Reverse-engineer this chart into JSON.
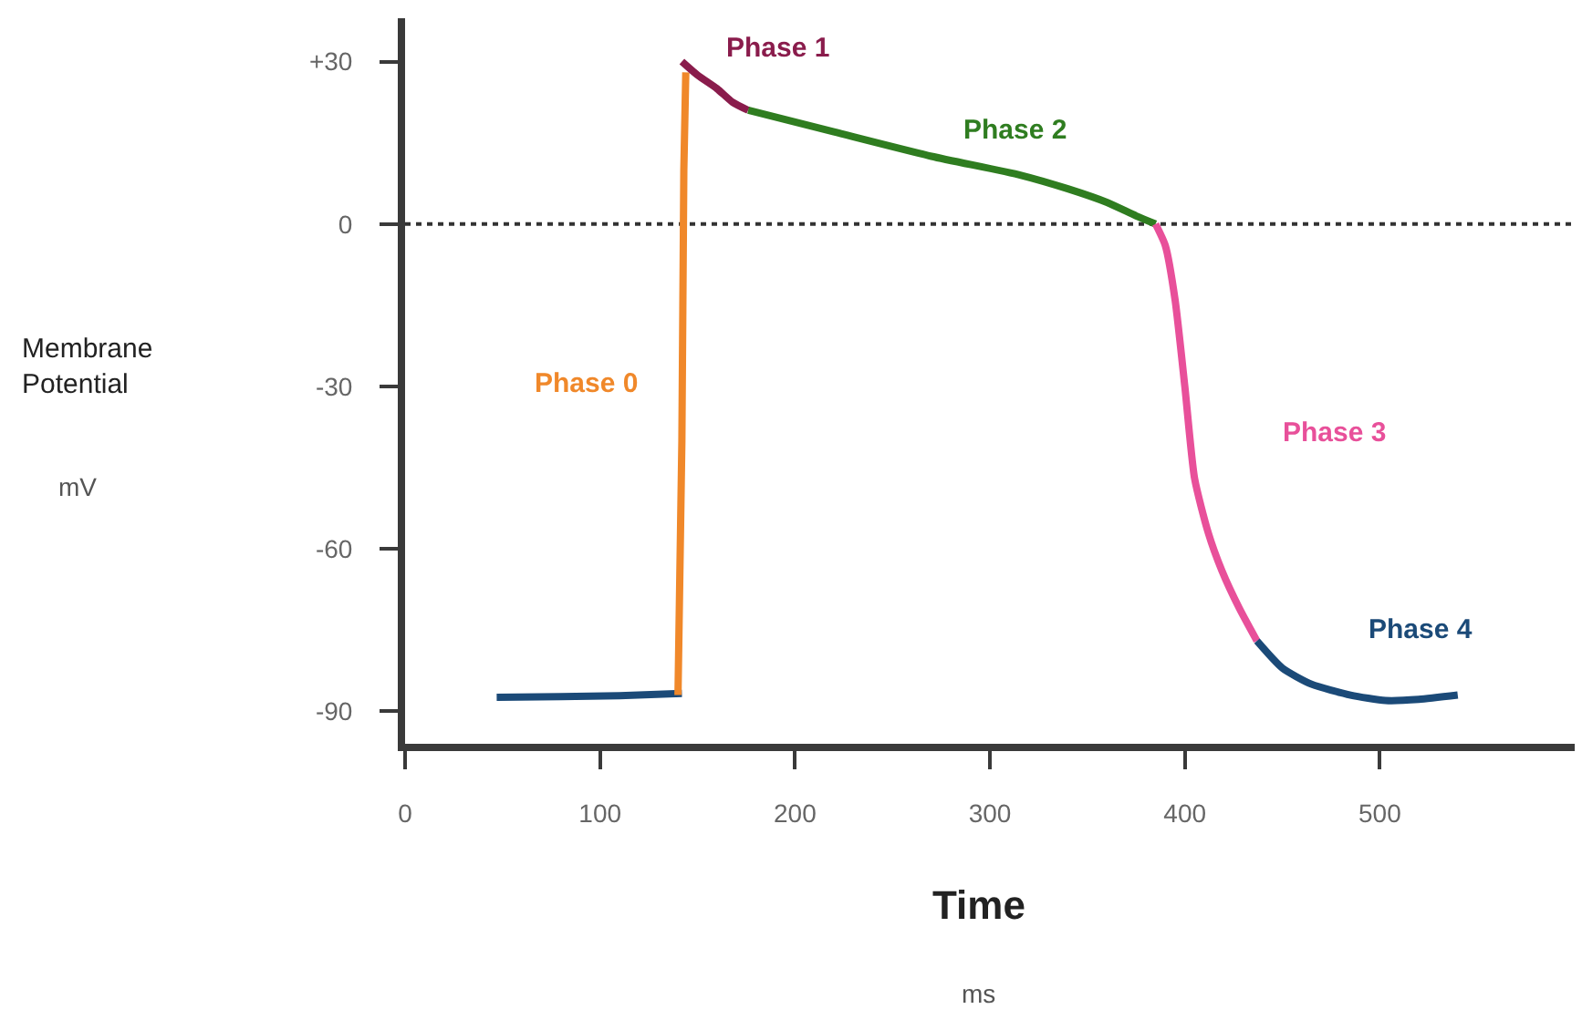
{
  "chart_data": {
    "type": "line",
    "xlabel": "Time",
    "xlim": [
      0,
      600
    ],
    "ylim": [
      -96,
      38
    ],
    "xticks": [
      0,
      100,
      200,
      300,
      400,
      500
    ],
    "yticks": [
      {
        "value": 30,
        "label": "+30"
      },
      0,
      -30,
      -60,
      -90
    ],
    "legend": false,
    "grid": false,
    "marker": "none",
    "line_style": "solid",
    "series": [
      {
        "color": "#1b4a78",
        "x": [
          47,
          80,
          110,
          142
        ],
        "values": [
          -87.4,
          -87.3,
          -87.1,
          -86.7
        ]
      },
      {
        "name": "Phase 0",
        "color": "#f0882a",
        "x": [
          140,
          142,
          143,
          144
        ],
        "values": [
          -87,
          -40,
          10,
          28
        ]
      },
      {
        "name": "Phase 1",
        "color": "#8a1c4c",
        "x": [
          142,
          150,
          160,
          168,
          176
        ],
        "values": [
          30,
          27.5,
          25,
          22.5,
          21
        ]
      },
      {
        "name": "Phase 2",
        "color": "#2f7d20",
        "x": [
          176,
          220,
          270,
          316,
          340,
          360,
          375,
          385
        ],
        "values": [
          21,
          17,
          12.5,
          9,
          6.5,
          4,
          1.5,
          0
        ]
      },
      {
        "name": "Phase 3",
        "color": "#e8509a",
        "x": [
          385,
          390,
          395,
          400,
          405,
          412,
          419,
          428,
          437
        ],
        "values": [
          0,
          -4,
          -14,
          -30,
          -47,
          -57,
          -64,
          -71,
          -77
        ]
      },
      {
        "name": "Phase 4",
        "color": "#1b4a78",
        "x": [
          437,
          450,
          465,
          485,
          503,
          520,
          540
        ],
        "values": [
          -77,
          -82,
          -85,
          -87,
          -88,
          -87.8,
          -87
        ]
      }
    ],
    "ref_lines": [
      {
        "axis": "y",
        "value": 0,
        "color": "#333333",
        "line_style": "dotted"
      }
    ],
    "annotations": [
      "Membrane Potential",
      "mV",
      "ms"
    ]
  }
}
